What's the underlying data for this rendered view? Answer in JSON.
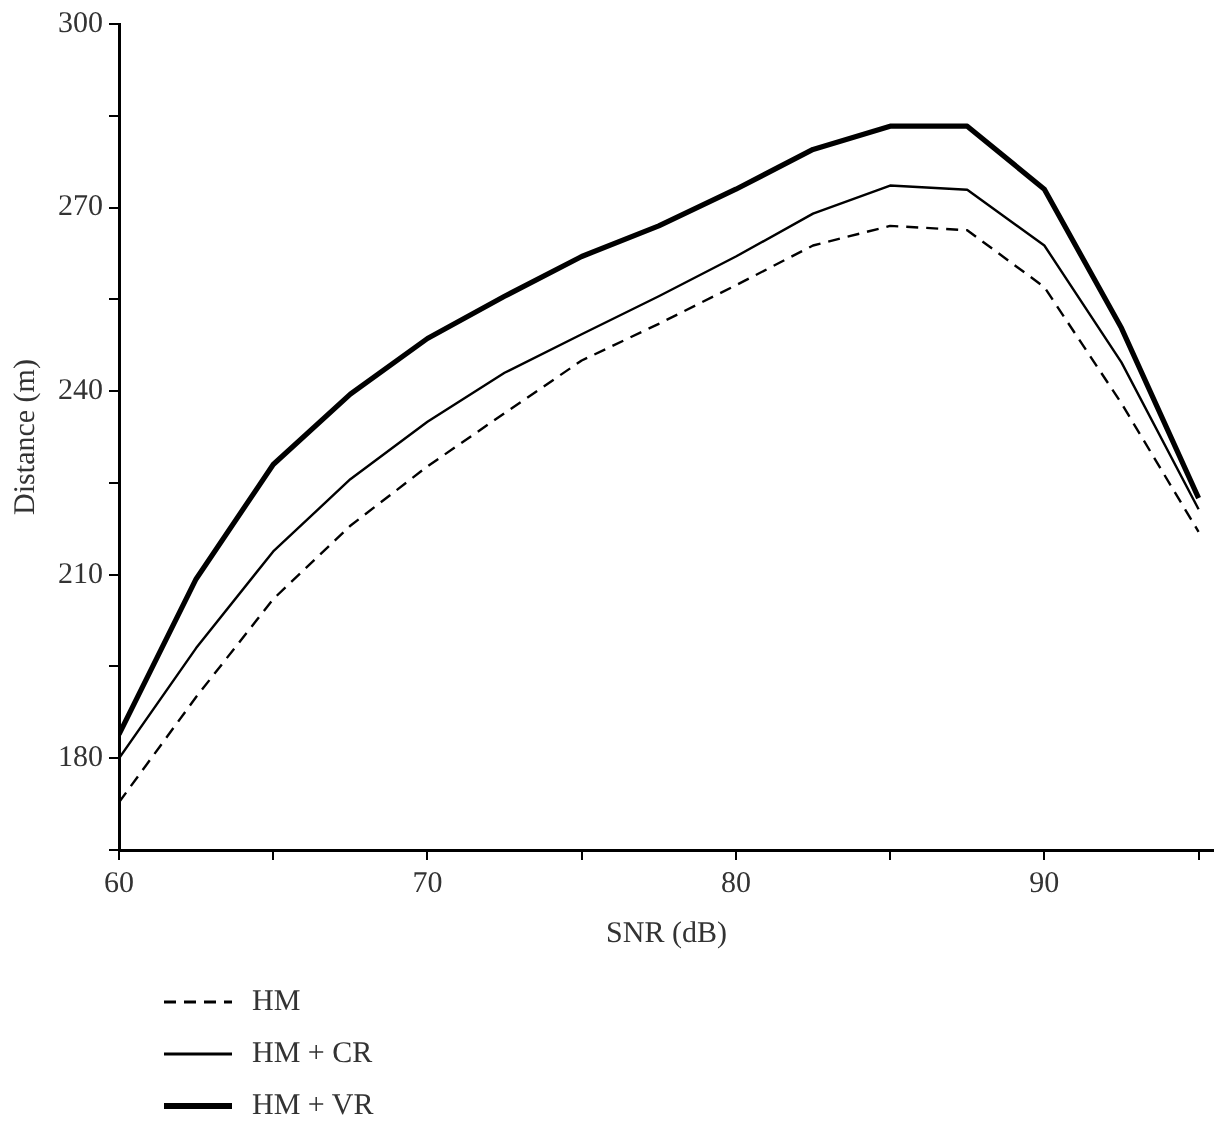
{
  "chart_data": {
    "type": "line",
    "xlabel": "SNR (dB)",
    "ylabel": "Distance (m)",
    "x": [
      60,
      62.5,
      65,
      67.5,
      70,
      72.5,
      75,
      77.5,
      80,
      82.5,
      85,
      87.5,
      90,
      92.5,
      95
    ],
    "xlim": [
      60,
      95.5
    ],
    "xticks": [
      60,
      {
        "value": 65,
        "label": null
      },
      70,
      {
        "value": 75,
        "label": null
      },
      80,
      {
        "value": 85,
        "label": null
      },
      90,
      {
        "value": 95,
        "label": null
      }
    ],
    "ylim": [
      165,
      300
    ],
    "yticks": [
      {
        "value": 165,
        "label": null
      },
      180,
      {
        "value": 195,
        "label": null
      },
      210,
      {
        "value": 225,
        "label": null
      },
      240,
      {
        "value": 255,
        "label": null
      },
      270,
      {
        "value": 285,
        "label": null
      },
      300
    ],
    "grid": false,
    "legend": "bottom",
    "marker": "none",
    "series": [
      {
        "name": "HM",
        "color": "#000000",
        "line_style": "dashed",
        "values": [
          172.8,
          190,
          206,
          218,
          227.7,
          236.4,
          245,
          251,
          257.3,
          263.8,
          267,
          266.3,
          257,
          238,
          217
        ]
      },
      {
        "name": "HM + CR",
        "color": "#000000",
        "line_style": "solid",
        "values": [
          180,
          198,
          213.8,
          225.6,
          235,
          243,
          249.3,
          255.5,
          262,
          269,
          273.6,
          272.9,
          263.8,
          244.7,
          220.7
        ]
      },
      {
        "name": "HM + VR",
        "color": "#000000",
        "line_style": "solid",
        "values": [
          183.9,
          209.3,
          228,
          239.5,
          248.6,
          255.5,
          262,
          267,
          273,
          279.5,
          283.3,
          283.3,
          273,
          250.3,
          222.5
        ]
      }
    ]
  }
}
